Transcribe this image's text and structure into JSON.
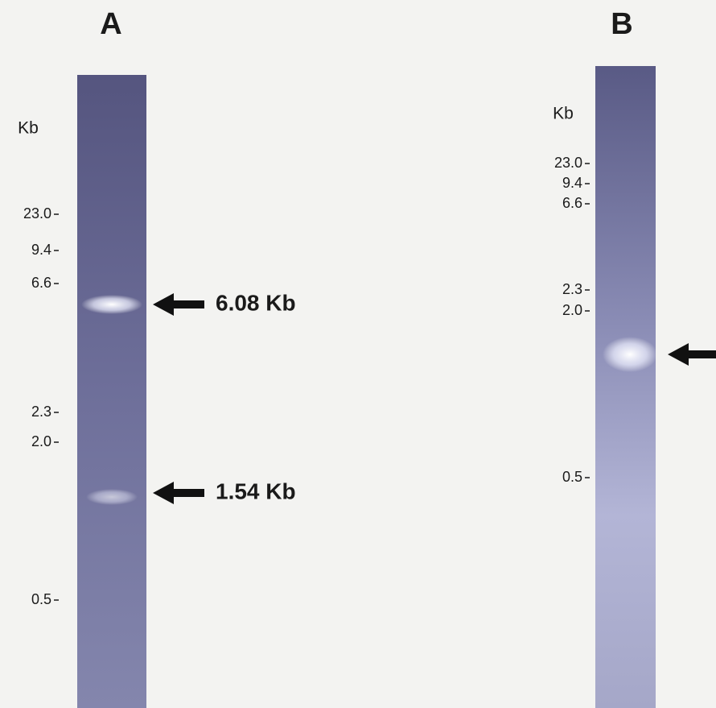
{
  "panels": [
    {
      "label": "A",
      "unit": "Kb",
      "markers": [
        "23.0",
        "9.4",
        "6.6",
        "2.3",
        "2.0",
        "0.5"
      ],
      "bands": [
        "6.08 Kb",
        "1.54 Kb"
      ]
    },
    {
      "label": "B",
      "unit": "Kb",
      "markers": [
        "23.0",
        "9.4",
        "6.6",
        "2.3",
        "2.0",
        "0.5"
      ],
      "bands": []
    }
  ]
}
